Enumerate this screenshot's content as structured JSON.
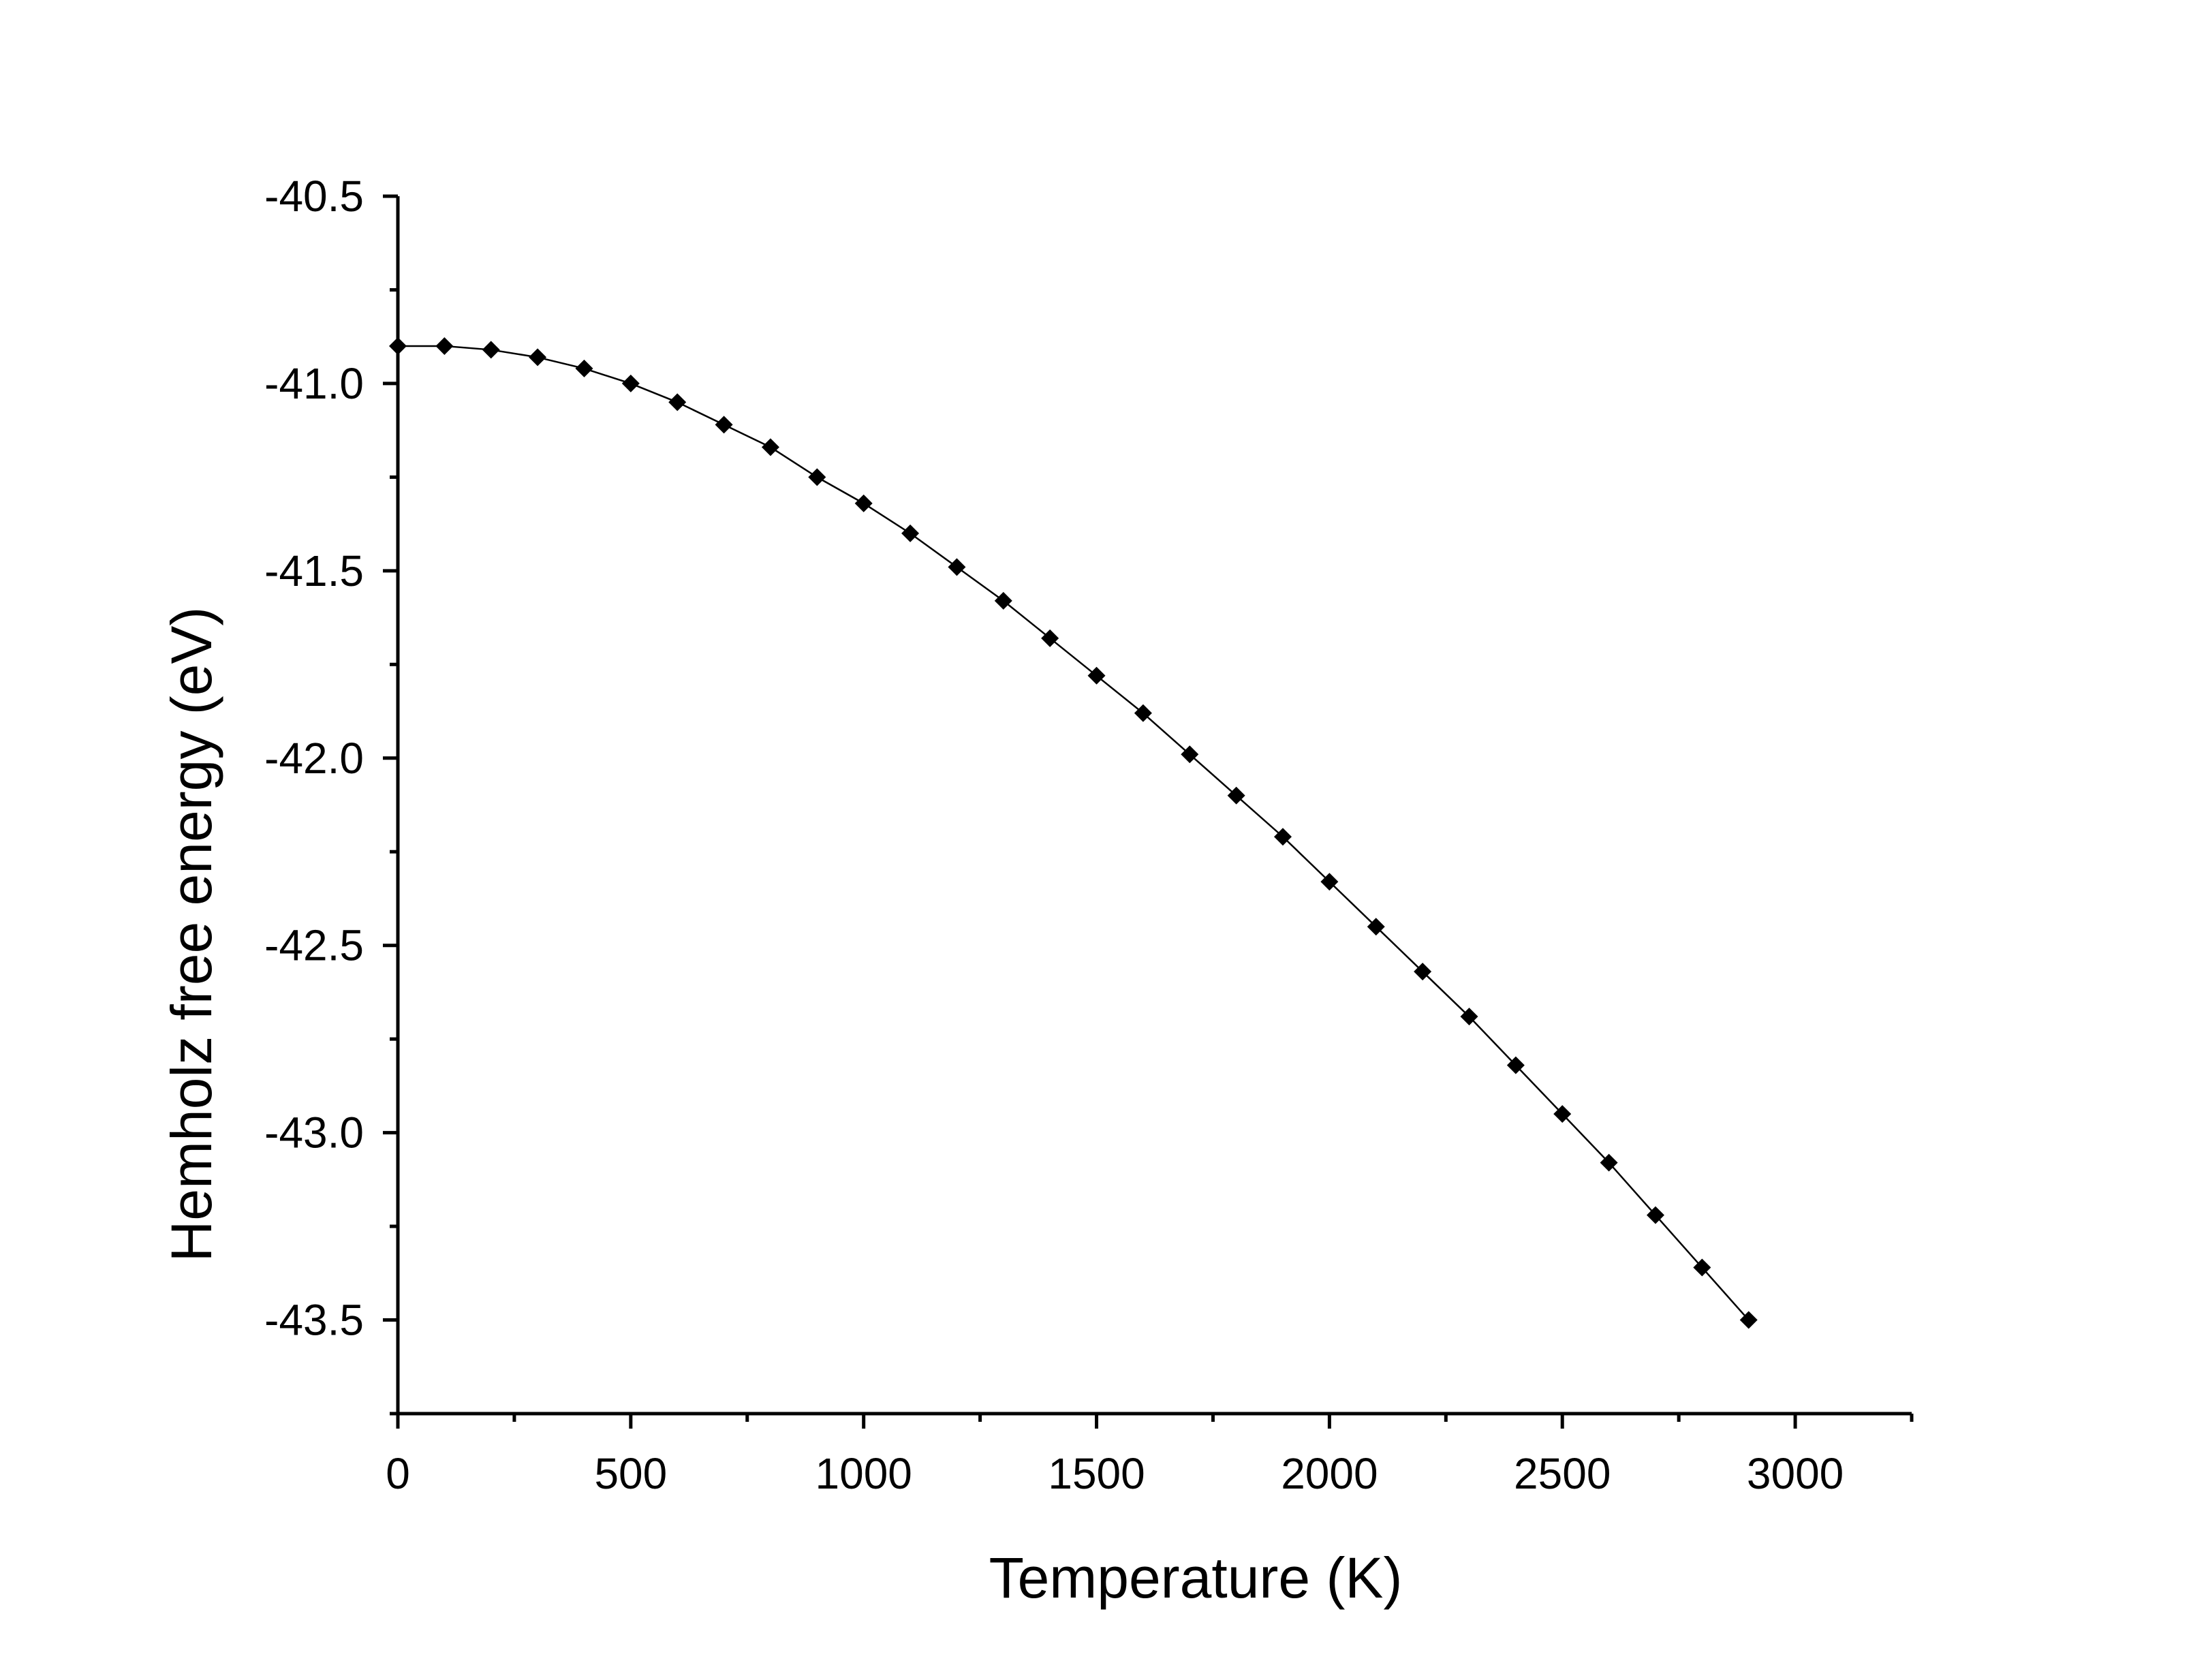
{
  "chart_data": {
    "type": "line",
    "title": "",
    "xlabel": "Temperature (K)",
    "ylabel": "Hemholz free energy (eV)",
    "xlim": [
      0,
      3250
    ],
    "ylim": [
      -43.75,
      -40.5
    ],
    "x_major_ticks": [
      0,
      500,
      1000,
      1500,
      2000,
      2500,
      3000
    ],
    "x_tick_labels": [
      "0",
      "500",
      "1000",
      "1500",
      "2000",
      "2500",
      "3000"
    ],
    "x_minor_ticks": [
      250,
      750,
      1250,
      1750,
      2250,
      2750,
      3250
    ],
    "y_major_ticks": [
      -40.5,
      -41.0,
      -41.5,
      -42.0,
      -42.5,
      -43.0,
      -43.5
    ],
    "y_tick_labels": [
      "-40.5",
      "-41.0",
      "-41.5",
      "-42.0",
      "-42.5",
      "-43.0",
      "-43.5"
    ],
    "y_minor_ticks": [
      -40.75,
      -41.25,
      -41.75,
      -42.25,
      -42.75,
      -43.25,
      -43.75
    ],
    "grid": false,
    "legend": "none",
    "series": [
      {
        "name": "Hemholz free energy",
        "marker": "diamond",
        "color": "#000000",
        "x": [
          0,
          100,
          200,
          300,
          400,
          500,
          600,
          700,
          800,
          900,
          1000,
          1100,
          1200,
          1300,
          1400,
          1500,
          1600,
          1700,
          1800,
          1900,
          2000,
          2100,
          2200,
          2300,
          2400,
          2500,
          2600,
          2700,
          2800,
          2900
        ],
        "y": [
          -40.9,
          -40.9,
          -40.91,
          -40.93,
          -40.96,
          -41.0,
          -41.05,
          -41.11,
          -41.17,
          -41.25,
          -41.32,
          -41.4,
          -41.49,
          -41.58,
          -41.68,
          -41.78,
          -41.88,
          -41.99,
          -42.1,
          -42.21,
          -42.33,
          -42.45,
          -42.57,
          -42.69,
          -42.82,
          -42.95,
          -43.08,
          -43.22,
          -43.36,
          -43.5
        ]
      }
    ]
  }
}
